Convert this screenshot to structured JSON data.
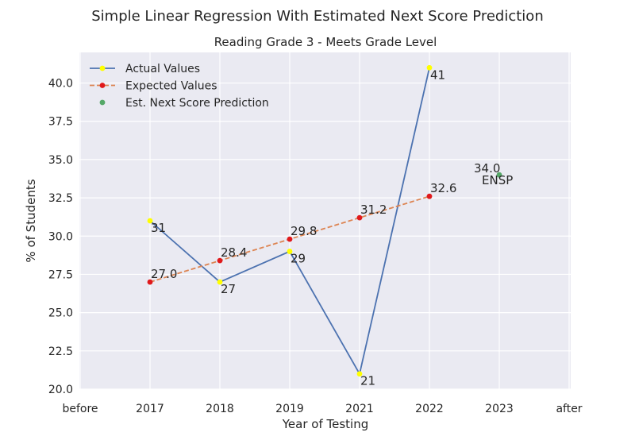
{
  "suptitle": "Simple Linear Regression With Estimated Next Score Prediction",
  "chart_data": {
    "type": "line",
    "title": "Reading Grade 3 - Meets Grade Level",
    "xlabel": "Year of Testing",
    "ylabel": "% of Students",
    "categories": [
      "before",
      "2017",
      "2018",
      "2019",
      "2021",
      "2022",
      "2023",
      "after"
    ],
    "ylim": [
      20.0,
      42.0
    ],
    "yticks": [
      "20.0",
      "22.5",
      "25.0",
      "27.5",
      "30.0",
      "32.5",
      "35.0",
      "37.5",
      "40.0"
    ],
    "ytick_values": [
      20.0,
      22.5,
      25.0,
      27.5,
      30.0,
      32.5,
      35.0,
      37.5,
      40.0
    ],
    "grid": true,
    "legend_position": "top-left",
    "series": [
      {
        "name": "Actual Values",
        "style": "solid",
        "color": "#4c72b0",
        "marker_color": "#ffff00",
        "x": [
          "2017",
          "2018",
          "2019",
          "2021",
          "2022"
        ],
        "values": [
          31,
          27,
          29,
          21,
          41
        ],
        "labels": [
          "31",
          "27",
          "29",
          "21",
          "41"
        ]
      },
      {
        "name": "Expected Values",
        "style": "dashed",
        "color": "#dd8452",
        "marker_color": "#e0191c",
        "x": [
          "2017",
          "2018",
          "2019",
          "2021",
          "2022"
        ],
        "values": [
          27.0,
          28.4,
          29.8,
          31.2,
          32.6
        ],
        "labels": [
          "27.0",
          "28.4",
          "29.8",
          "31.2",
          "32.6"
        ]
      },
      {
        "name": "Est. Next Score Prediction",
        "style": "point",
        "marker_color": "#55a868",
        "x": [
          "2023"
        ],
        "values": [
          34.0
        ],
        "labels": [
          "34.0"
        ],
        "tag": "ENSP"
      }
    ],
    "colors": {
      "plot_bg": "#eaeaf2",
      "grid": "#ffffff",
      "text": "#262626"
    }
  }
}
